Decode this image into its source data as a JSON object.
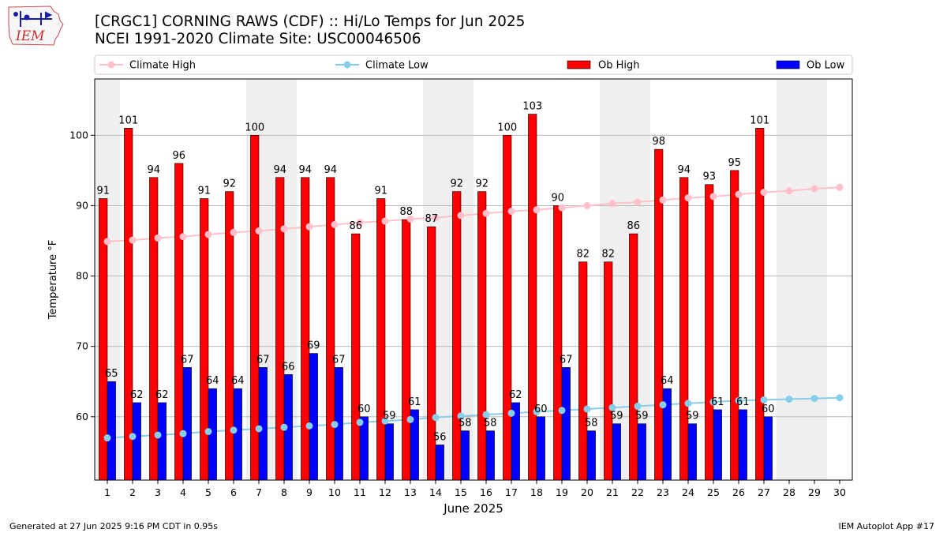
{
  "header": {
    "title_line1": "[CRGC1] CORNING RAWS (CDF) :: Hi/Lo Temps for Jun 2025",
    "title_line2": "NCEI 1991-2020 Climate Site: USC00046506"
  },
  "logo": {
    "text": "IEM"
  },
  "footer": {
    "generated": "Generated at 27 Jun 2025 9:16 PM CDT in 0.95s",
    "app": "IEM Autoplot App #17"
  },
  "colors": {
    "ob_high": "#ff0000",
    "ob_low": "#0000ff",
    "climate_high": "#ffc0cb",
    "climate_low": "#87ceeb",
    "weekend_band": "#efefef",
    "grid": "#b0b0b0"
  },
  "chart_data": {
    "type": "bar",
    "title": "[CRGC1] CORNING RAWS (CDF) :: Hi/Lo Temps for Jun 2025",
    "xlabel": "June 2025",
    "ylabel": "Temperature °F",
    "ylim": [
      51,
      108
    ],
    "yticks": [
      60,
      70,
      80,
      90,
      100
    ],
    "grid": true,
    "legend_position": "top",
    "weekend_days": [
      1,
      7,
      8,
      14,
      15,
      21,
      22,
      28,
      29
    ],
    "categories": [
      "1",
      "2",
      "3",
      "4",
      "5",
      "6",
      "7",
      "8",
      "9",
      "10",
      "11",
      "12",
      "13",
      "14",
      "15",
      "16",
      "17",
      "18",
      "19",
      "20",
      "21",
      "22",
      "23",
      "24",
      "25",
      "26",
      "27",
      "28",
      "29",
      "30"
    ],
    "series": [
      {
        "name": "Ob High",
        "kind": "bar",
        "values": [
          91,
          101,
          94,
          96,
          91,
          92,
          100,
          94,
          94,
          94,
          86,
          91,
          88,
          87,
          92,
          92,
          100,
          103,
          90,
          82,
          82,
          86,
          98,
          94,
          93,
          95,
          101,
          null,
          null,
          null
        ]
      },
      {
        "name": "Ob Low",
        "kind": "bar",
        "values": [
          65,
          62,
          62,
          67,
          64,
          64,
          67,
          66,
          69,
          67,
          60,
          59,
          61,
          56,
          58,
          58,
          62,
          60,
          67,
          58,
          59,
          59,
          64,
          59,
          61,
          61,
          60,
          null,
          null,
          null
        ]
      },
      {
        "name": "Climate High",
        "kind": "line",
        "values": [
          84.9,
          85.1,
          85.4,
          85.6,
          85.9,
          86.2,
          86.4,
          86.7,
          87.0,
          87.3,
          87.6,
          87.8,
          88.1,
          88.3,
          88.6,
          88.9,
          89.2,
          89.4,
          89.7,
          90.0,
          90.3,
          90.5,
          90.8,
          91.1,
          91.3,
          91.6,
          91.9,
          92.1,
          92.4,
          92.6
        ]
      },
      {
        "name": "Climate Low",
        "kind": "line",
        "values": [
          57.0,
          57.2,
          57.4,
          57.6,
          57.9,
          58.1,
          58.3,
          58.5,
          58.7,
          58.9,
          59.2,
          59.4,
          59.6,
          59.9,
          60.1,
          60.3,
          60.5,
          60.7,
          60.9,
          61.1,
          61.3,
          61.5,
          61.7,
          61.9,
          62.1,
          62.3,
          62.4,
          62.5,
          62.6,
          62.7
        ]
      }
    ]
  }
}
